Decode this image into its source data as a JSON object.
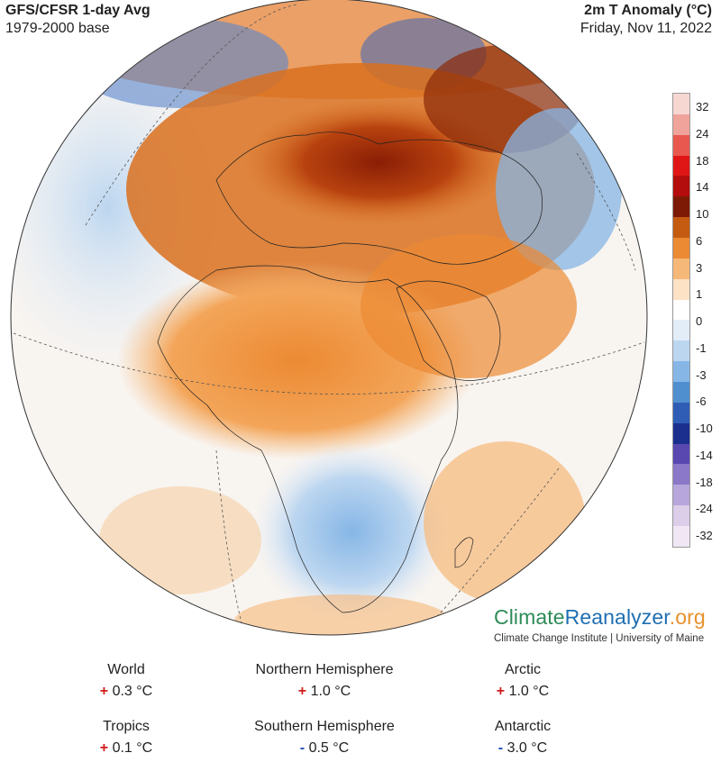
{
  "header": {
    "title": "GFS/CFSR 1-day Avg",
    "subtitle": "1979-2000 base",
    "right_title": "2m T Anomaly (°C)",
    "date": "Friday, Nov 11, 2022"
  },
  "legend": {
    "labels": [
      "32",
      "24",
      "18",
      "14",
      "10",
      "6",
      "3",
      "1",
      "0",
      "-1",
      "-3",
      "-6",
      "-10",
      "-14",
      "-18",
      "-24",
      "-32"
    ],
    "colors": [
      "#f7d7d2",
      "#f0a39a",
      "#e8584f",
      "#e01616",
      "#b30d0d",
      "#7d1a05",
      "#c55a11",
      "#ec8a33",
      "#f6b878",
      "#fde2c6",
      "#ffffff",
      "#e3edf8",
      "#bcd6f0",
      "#86b6e6",
      "#4f8fd0",
      "#2f5db5",
      "#1a2f8e",
      "#5848b0",
      "#8b78c8",
      "#b7a6dc",
      "#dccde9",
      "#f1e7f4"
    ]
  },
  "brand": {
    "part1": "Climate",
    "part2": "Reanalyzer",
    "part3": ".org",
    "sub": "Climate Change Institute | University of Maine"
  },
  "stats": [
    {
      "name": "World",
      "sign": "+",
      "value": "0.3 °C"
    },
    {
      "name": "Northern Hemisphere",
      "sign": "+",
      "value": "1.0 °C"
    },
    {
      "name": "Arctic",
      "sign": "+",
      "value": "1.0 °C"
    },
    {
      "name": "Tropics",
      "sign": "+",
      "value": "0.1 °C"
    },
    {
      "name": "Southern Hemisphere",
      "sign": "-",
      "value": "0.5 °C"
    },
    {
      "name": "Antarctic",
      "sign": "-",
      "value": "3.0 °C"
    }
  ]
}
